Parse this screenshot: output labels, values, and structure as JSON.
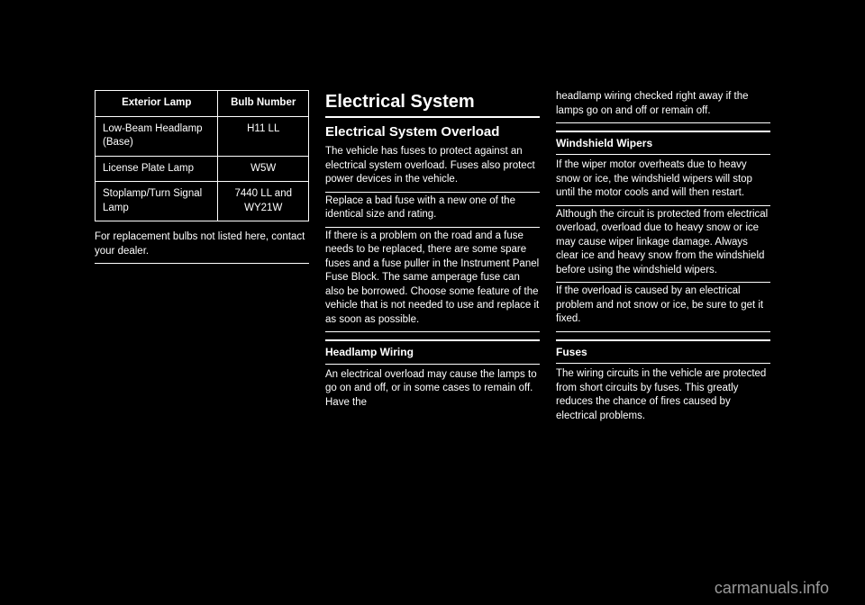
{
  "col1": {
    "table": {
      "headers": [
        "Exterior Lamp",
        "Bulb Number"
      ],
      "rows": [
        [
          "Low-Beam Headlamp (Base)",
          "H11 LL"
        ],
        [
          "License Plate Lamp",
          "W5W"
        ],
        [
          "Stoplamp/Turn Signal Lamp",
          "7440 LL and WY21W"
        ]
      ]
    },
    "footnote": "For replacement bulbs not listed here, contact your dealer."
  },
  "col2": {
    "heading": "Electrical System",
    "sub1": "Electrical System Overload",
    "p1": "The vehicle has fuses to protect against an electrical system overload. Fuses also protect power devices in the vehicle.",
    "p2": "Replace a bad fuse with a new one of the identical size and rating.",
    "p3": "If there is a problem on the road and a fuse needs to be replaced, there are some spare fuses and a fuse puller in the Instrument Panel Fuse Block. The same amperage fuse can also be borrowed. Choose some feature of the vehicle that is not needed to use and replace it as soon as possible.",
    "sub2": "Headlamp Wiring",
    "p4": "An electrical overload may cause the lamps to go on and off, or in some cases to remain off. Have the"
  },
  "col3": {
    "p1": "headlamp wiring checked right away if the lamps go on and off or remain off.",
    "sub1": "Windshield Wipers",
    "p2": "If the wiper motor overheats due to heavy snow or ice, the windshield wipers will stop until the motor cools and will then restart.",
    "p3": "Although the circuit is protected from electrical overload, overload due to heavy snow or ice may cause wiper linkage damage. Always clear ice and heavy snow from the windshield before using the windshield wipers.",
    "p4": "If the overload is caused by an electrical problem and not snow or ice, be sure to get it fixed.",
    "sub2": "Fuses",
    "p5": "The wiring circuits in the vehicle are protected from short circuits by fuses. This greatly reduces the chance of fires caused by electrical problems."
  },
  "watermark": "carmanuals.info"
}
